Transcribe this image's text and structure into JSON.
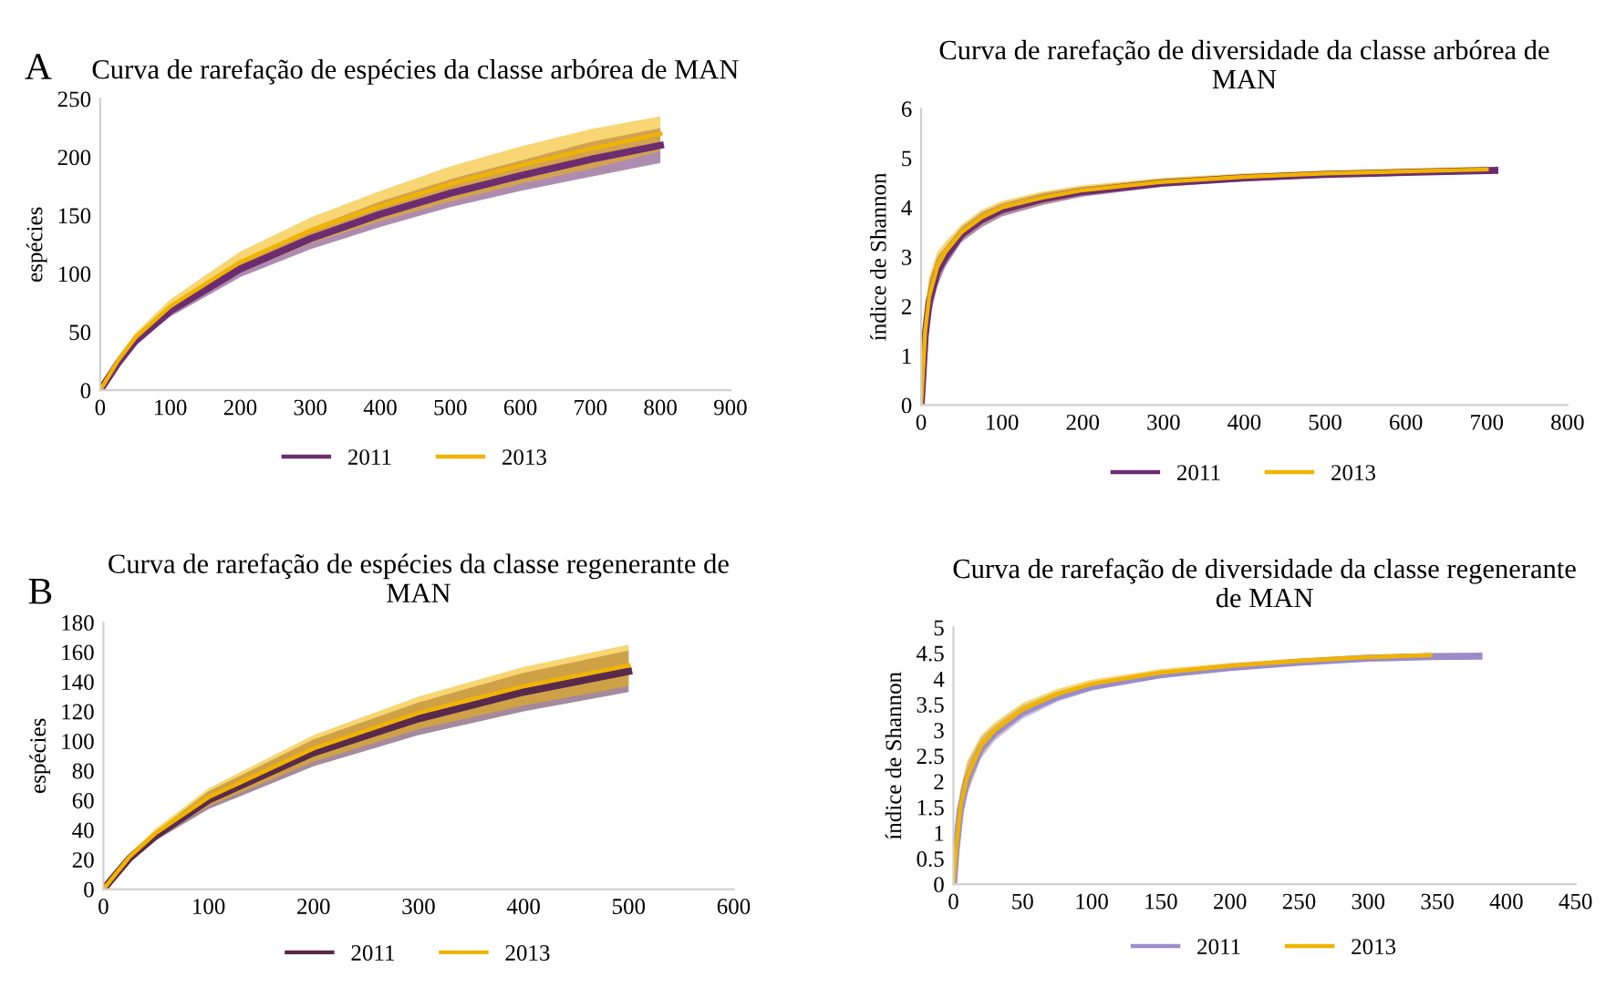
{
  "chart_data": [
    {
      "type": "line",
      "title": "Curva de rarefação de espécies da classe arbórea de MAN",
      "ylabel": "espécies",
      "xlim": [
        0,
        900
      ],
      "xticks": [
        0,
        100,
        200,
        300,
        400,
        500,
        600,
        700,
        800,
        900
      ],
      "ylim": [
        0,
        250
      ],
      "yticks": [
        0,
        50,
        100,
        150,
        200,
        250
      ],
      "legend": "bottom",
      "grid": false,
      "annotations": [
        "A"
      ],
      "series": [
        {
          "name": "2011",
          "color": "#6b2d6f",
          "x": [
            0,
            25,
            50,
            100,
            200,
            300,
            400,
            500,
            600,
            700,
            800
          ],
          "values": [
            0,
            23,
            42,
            68,
            104,
            130,
            151,
            169,
            184,
            198,
            210
          ],
          "lower": [
            0,
            21,
            39,
            63,
            97,
            121,
            140,
            157,
            171,
            183,
            195
          ],
          "upper": [
            0,
            25,
            45,
            73,
            111,
            139,
            162,
            181,
            197,
            213,
            225
          ]
        },
        {
          "name": "2013",
          "color": "#f0b400",
          "x": [
            0,
            25,
            50,
            100,
            200,
            300,
            400,
            500,
            600,
            700,
            800
          ],
          "values": [
            0,
            25,
            45,
            72,
            110,
            137,
            158,
            177,
            193,
            207,
            220
          ],
          "lower": [
            0,
            22,
            41,
            66,
            101,
            126,
            145,
            162,
            177,
            190,
            205
          ],
          "upper": [
            0,
            28,
            49,
            78,
            119,
            148,
            171,
            192,
            209,
            224,
            235
          ]
        }
      ]
    },
    {
      "type": "line",
      "title": "Curva de rarefação de diversidade da classe arbórea de\nMAN",
      "ylabel": "índice de Shannon",
      "xlim": [
        0,
        800
      ],
      "xticks": [
        0,
        100,
        200,
        300,
        400,
        500,
        600,
        700,
        800
      ],
      "ylim": [
        0,
        6
      ],
      "yticks": [
        0,
        1,
        2,
        3,
        4,
        5,
        6
      ],
      "legend": "bottom",
      "grid": false,
      "series": [
        {
          "name": "2011",
          "color": "#6b2d6f",
          "x": [
            0,
            5,
            10,
            20,
            30,
            50,
            75,
            100,
            150,
            200,
            300,
            400,
            500,
            600,
            710
          ],
          "values": [
            0,
            1.4,
            2.1,
            2.7,
            3.0,
            3.45,
            3.75,
            3.95,
            4.17,
            4.32,
            4.5,
            4.6,
            4.67,
            4.71,
            4.75
          ],
          "lower": [
            0,
            0.9,
            1.7,
            2.4,
            2.8,
            3.3,
            3.6,
            3.82,
            4.05,
            4.22,
            4.42,
            4.53,
            4.61,
            4.66,
            4.7
          ],
          "upper": [
            0,
            1.9,
            2.5,
            3.0,
            3.2,
            3.6,
            3.9,
            4.08,
            4.29,
            4.42,
            4.58,
            4.67,
            4.73,
            4.77,
            4.8
          ]
        },
        {
          "name": "2013",
          "color": "#f0b400",
          "x": [
            0,
            5,
            10,
            20,
            30,
            50,
            75,
            100,
            150,
            200,
            300,
            400,
            500,
            600,
            700
          ],
          "values": [
            0,
            1.5,
            2.2,
            2.8,
            3.1,
            3.5,
            3.8,
            4.0,
            4.2,
            4.35,
            4.52,
            4.62,
            4.69,
            4.73,
            4.77
          ],
          "lower": [
            0,
            1.0,
            1.8,
            2.5,
            2.9,
            3.35,
            3.65,
            3.87,
            4.08,
            4.25,
            4.44,
            4.55,
            4.63,
            4.68,
            4.72
          ],
          "upper": [
            0,
            2.0,
            2.6,
            3.1,
            3.3,
            3.65,
            3.95,
            4.13,
            4.32,
            4.45,
            4.6,
            4.69,
            4.75,
            4.79,
            4.83
          ]
        }
      ]
    },
    {
      "type": "line",
      "title": "Curva de rarefação de espécies da classe regenerante de\nMAN",
      "ylabel": "espécies",
      "xlim": [
        0,
        600
      ],
      "xticks": [
        0,
        100,
        200,
        300,
        400,
        500,
        600
      ],
      "ylim": [
        0,
        180
      ],
      "yticks": [
        0,
        20,
        40,
        60,
        80,
        100,
        120,
        140,
        160,
        180
      ],
      "legend": "bottom",
      "grid": false,
      "annotations": [
        "B"
      ],
      "series": [
        {
          "name": "2011",
          "color": "#5a2a4a",
          "x": [
            0,
            25,
            50,
            100,
            200,
            300,
            400,
            500
          ],
          "values": [
            0,
            21,
            36,
            60,
            92,
            115,
            133,
            147
          ],
          "lower": [
            0,
            19,
            33,
            54,
            83,
            104,
            120,
            133
          ],
          "upper": [
            0,
            23,
            39,
            66,
            101,
            126,
            146,
            161
          ]
        },
        {
          "name": "2013",
          "color": "#f0b400",
          "x": [
            0,
            25,
            50,
            100,
            200,
            300,
            400,
            500
          ],
          "values": [
            0,
            22,
            38,
            62,
            95,
            119,
            137,
            151
          ],
          "lower": [
            0,
            20,
            35,
            56,
            86,
            108,
            124,
            137
          ],
          "upper": [
            0,
            24,
            41,
            68,
            104,
            130,
            150,
            165
          ]
        }
      ]
    },
    {
      "type": "line",
      "title": "Curva de rarefação de diversidade da classe regenerante\nde MAN",
      "ylabel": "índice de Shannon",
      "xlim": [
        0,
        450
      ],
      "xticks": [
        0,
        50,
        100,
        150,
        200,
        250,
        300,
        350,
        400,
        450
      ],
      "ylim": [
        0,
        5
      ],
      "yticks": [
        0,
        0.5,
        1,
        1.5,
        2,
        2.5,
        3,
        3.5,
        4,
        4.5,
        5
      ],
      "legend": "bottom",
      "grid": false,
      "series": [
        {
          "name": "2011",
          "color": "#9b8cc9",
          "x": [
            0,
            2,
            5,
            10,
            20,
            30,
            50,
            75,
            100,
            150,
            200,
            250,
            300,
            345,
            380
          ],
          "values": [
            0,
            0.7,
            1.45,
            2.05,
            2.65,
            2.95,
            3.35,
            3.65,
            3.85,
            4.08,
            4.22,
            4.32,
            4.4,
            4.43,
            4.44
          ],
          "lower": [
            0,
            0.4,
            1.1,
            1.75,
            2.45,
            2.8,
            3.22,
            3.55,
            3.77,
            4.01,
            4.16,
            4.27,
            4.35,
            4.39,
            4.4
          ],
          "upper": [
            0,
            1.0,
            1.8,
            2.35,
            2.85,
            3.1,
            3.48,
            3.75,
            3.93,
            4.15,
            4.28,
            4.37,
            4.45,
            4.47,
            4.48
          ]
        },
        {
          "name": "2013",
          "color": "#f0b400",
          "x": [
            0,
            2,
            5,
            10,
            20,
            30,
            50,
            75,
            100,
            150,
            200,
            250,
            300,
            345
          ],
          "values": [
            0,
            0.7,
            1.5,
            2.1,
            2.7,
            3.0,
            3.4,
            3.7,
            3.9,
            4.12,
            4.25,
            4.35,
            4.42,
            4.46
          ],
          "lower": [
            0,
            0.4,
            1.15,
            1.8,
            2.5,
            2.85,
            3.27,
            3.6,
            3.82,
            4.05,
            4.19,
            4.3,
            4.37,
            4.42
          ],
          "upper": [
            0,
            1.0,
            1.85,
            2.4,
            2.9,
            3.15,
            3.53,
            3.8,
            3.98,
            4.19,
            4.31,
            4.4,
            4.47,
            4.5
          ]
        }
      ]
    }
  ]
}
